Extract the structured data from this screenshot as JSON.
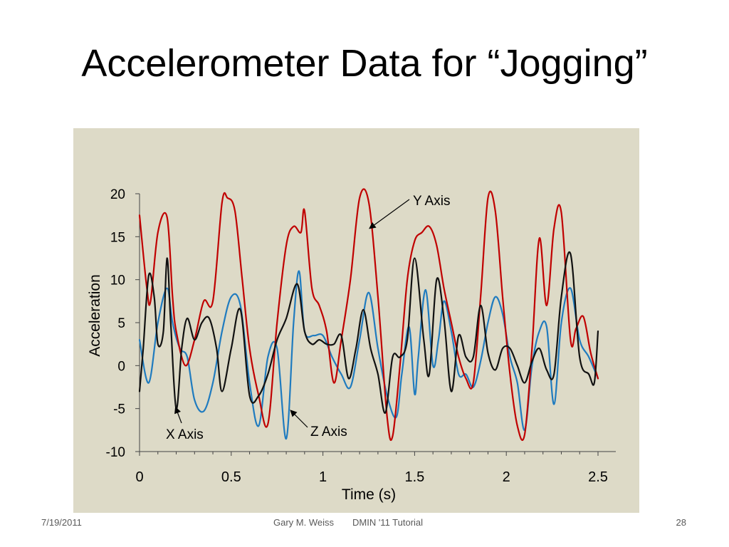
{
  "slide": {
    "title": "Accelerometer Data for “Jogging”"
  },
  "footer": {
    "date": "7/19/2011",
    "author": "Gary M. Weiss",
    "event": "DMIN '11 Tutorial",
    "page": "28"
  },
  "chart_data": {
    "type": "line",
    "title": "",
    "xlabel": "Time (s)",
    "ylabel": "Acceleration",
    "xlim": [
      0,
      2.5
    ],
    "ylim": [
      -10,
      20
    ],
    "x_ticks": [
      "0",
      "0.5",
      "1",
      "1.5",
      "2",
      "2.5"
    ],
    "x_tick_values": [
      0,
      0.5,
      1,
      1.5,
      2,
      2.5
    ],
    "y_ticks": [
      "20",
      "15",
      "10",
      "5",
      "0",
      "-5",
      "-10"
    ],
    "y_tick_values": [
      20,
      15,
      10,
      5,
      0,
      -5,
      -10
    ],
    "grid": false,
    "series": [
      {
        "name": "Y Axis",
        "color": "#c00000",
        "x": [
          0,
          0.04,
          0.06,
          0.1,
          0.15,
          0.18,
          0.2,
          0.25,
          0.3,
          0.35,
          0.4,
          0.45,
          0.48,
          0.52,
          0.56,
          0.6,
          0.65,
          0.7,
          0.75,
          0.8,
          0.84,
          0.88,
          0.9,
          0.94,
          0.98,
          1.02,
          1.06,
          1.1,
          1.15,
          1.2,
          1.25,
          1.3,
          1.35,
          1.38,
          1.42,
          1.46,
          1.5,
          1.54,
          1.58,
          1.62,
          1.66,
          1.7,
          1.74,
          1.78,
          1.82,
          1.86,
          1.9,
          1.94,
          1.98,
          2.02,
          2.06,
          2.1,
          2.14,
          2.18,
          2.22,
          2.26,
          2.3,
          2.35,
          2.38,
          2.42,
          2.46,
          2.5
        ],
        "y": [
          17.5,
          9,
          7.5,
          15.5,
          17.3,
          8,
          4,
          0,
          3,
          7.5,
          7.5,
          19,
          19.5,
          18,
          10,
          2,
          -3.5,
          -6.8,
          5,
          14,
          16.2,
          15.5,
          18,
          9,
          7,
          4,
          -2,
          3,
          10,
          19.5,
          19,
          8,
          -6,
          -8.2,
          0,
          10,
          14.5,
          15.5,
          16.2,
          14,
          9,
          5,
          1,
          -1.5,
          -2,
          8,
          19.5,
          18,
          8,
          -1,
          -7,
          -8,
          2,
          14.8,
          7,
          16,
          17.8,
          3,
          4.3,
          5.7,
          1.5,
          -1.5
        ]
      },
      {
        "name": "X Axis",
        "color": "#111111",
        "x": [
          0,
          0.02,
          0.05,
          0.08,
          0.1,
          0.13,
          0.15,
          0.17,
          0.2,
          0.23,
          0.26,
          0.3,
          0.34,
          0.38,
          0.42,
          0.45,
          0.5,
          0.55,
          0.6,
          0.65,
          0.7,
          0.75,
          0.8,
          0.86,
          0.9,
          0.94,
          0.98,
          1.02,
          1.06,
          1.1,
          1.14,
          1.18,
          1.22,
          1.26,
          1.3,
          1.34,
          1.38,
          1.42,
          1.46,
          1.5,
          1.55,
          1.58,
          1.62,
          1.66,
          1.7,
          1.74,
          1.78,
          1.82,
          1.86,
          1.9,
          1.94,
          1.98,
          2.02,
          2.06,
          2.1,
          2.14,
          2.18,
          2.22,
          2.26,
          2.3,
          2.35,
          2.4,
          2.45,
          2.48,
          2.5
        ],
        "y": [
          -3,
          2,
          10.5,
          8,
          2.5,
          4,
          12.5,
          5,
          -5,
          2,
          5.5,
          3,
          5,
          5.5,
          2,
          -3,
          2,
          6.5,
          -3.5,
          -3.5,
          -1,
          3,
          5.5,
          9.5,
          4,
          2.5,
          3,
          2.5,
          2.5,
          3.5,
          -1.5,
          2,
          6.5,
          2,
          -1,
          -5.5,
          1,
          1,
          3,
          12.5,
          3,
          -1,
          10,
          5.5,
          -3,
          3.5,
          1,
          1,
          7,
          1.5,
          -0.5,
          2,
          2,
          0,
          -2,
          0.5,
          2,
          -0.5,
          -1,
          8,
          13,
          1,
          -1,
          -2,
          4
        ]
      },
      {
        "name": "Z Axis",
        "color": "#1f7bbf",
        "x": [
          0,
          0.05,
          0.1,
          0.15,
          0.18,
          0.22,
          0.26,
          0.3,
          0.35,
          0.4,
          0.45,
          0.5,
          0.55,
          0.6,
          0.65,
          0.7,
          0.75,
          0.8,
          0.84,
          0.87,
          0.9,
          0.95,
          1.0,
          1.05,
          1.1,
          1.15,
          1.2,
          1.25,
          1.3,
          1.35,
          1.4,
          1.43,
          1.47,
          1.5,
          1.52,
          1.56,
          1.6,
          1.63,
          1.66,
          1.7,
          1.74,
          1.78,
          1.82,
          1.86,
          1.9,
          1.94,
          1.98,
          2.02,
          2.06,
          2.1,
          2.14,
          2.18,
          2.22,
          2.26,
          2.3,
          2.35,
          2.4,
          2.45,
          2.5
        ],
        "y": [
          3,
          -2,
          5,
          9,
          5,
          2,
          1,
          -4,
          -5.3,
          -2,
          4,
          8,
          7,
          -2,
          -7,
          1,
          2,
          -8.5,
          5,
          11,
          4,
          3.5,
          3.5,
          1,
          -1,
          -2.5,
          3,
          8.5,
          2,
          -3.5,
          -6,
          -1,
          4.5,
          -3.3,
          1,
          8.8,
          0,
          3,
          7.5,
          4,
          -1,
          -1,
          -2.5,
          0.5,
          5,
          8,
          6,
          1,
          -2,
          -7.5,
          0,
          4,
          4.5,
          -4.5,
          5,
          9,
          3,
          1,
          -1.5
        ]
      }
    ],
    "annotations": [
      {
        "text": "Y Axis",
        "series": "Y Axis"
      },
      {
        "text": "X Axis",
        "series": "X Axis"
      },
      {
        "text": "Z Axis",
        "series": "Z Axis"
      }
    ]
  }
}
